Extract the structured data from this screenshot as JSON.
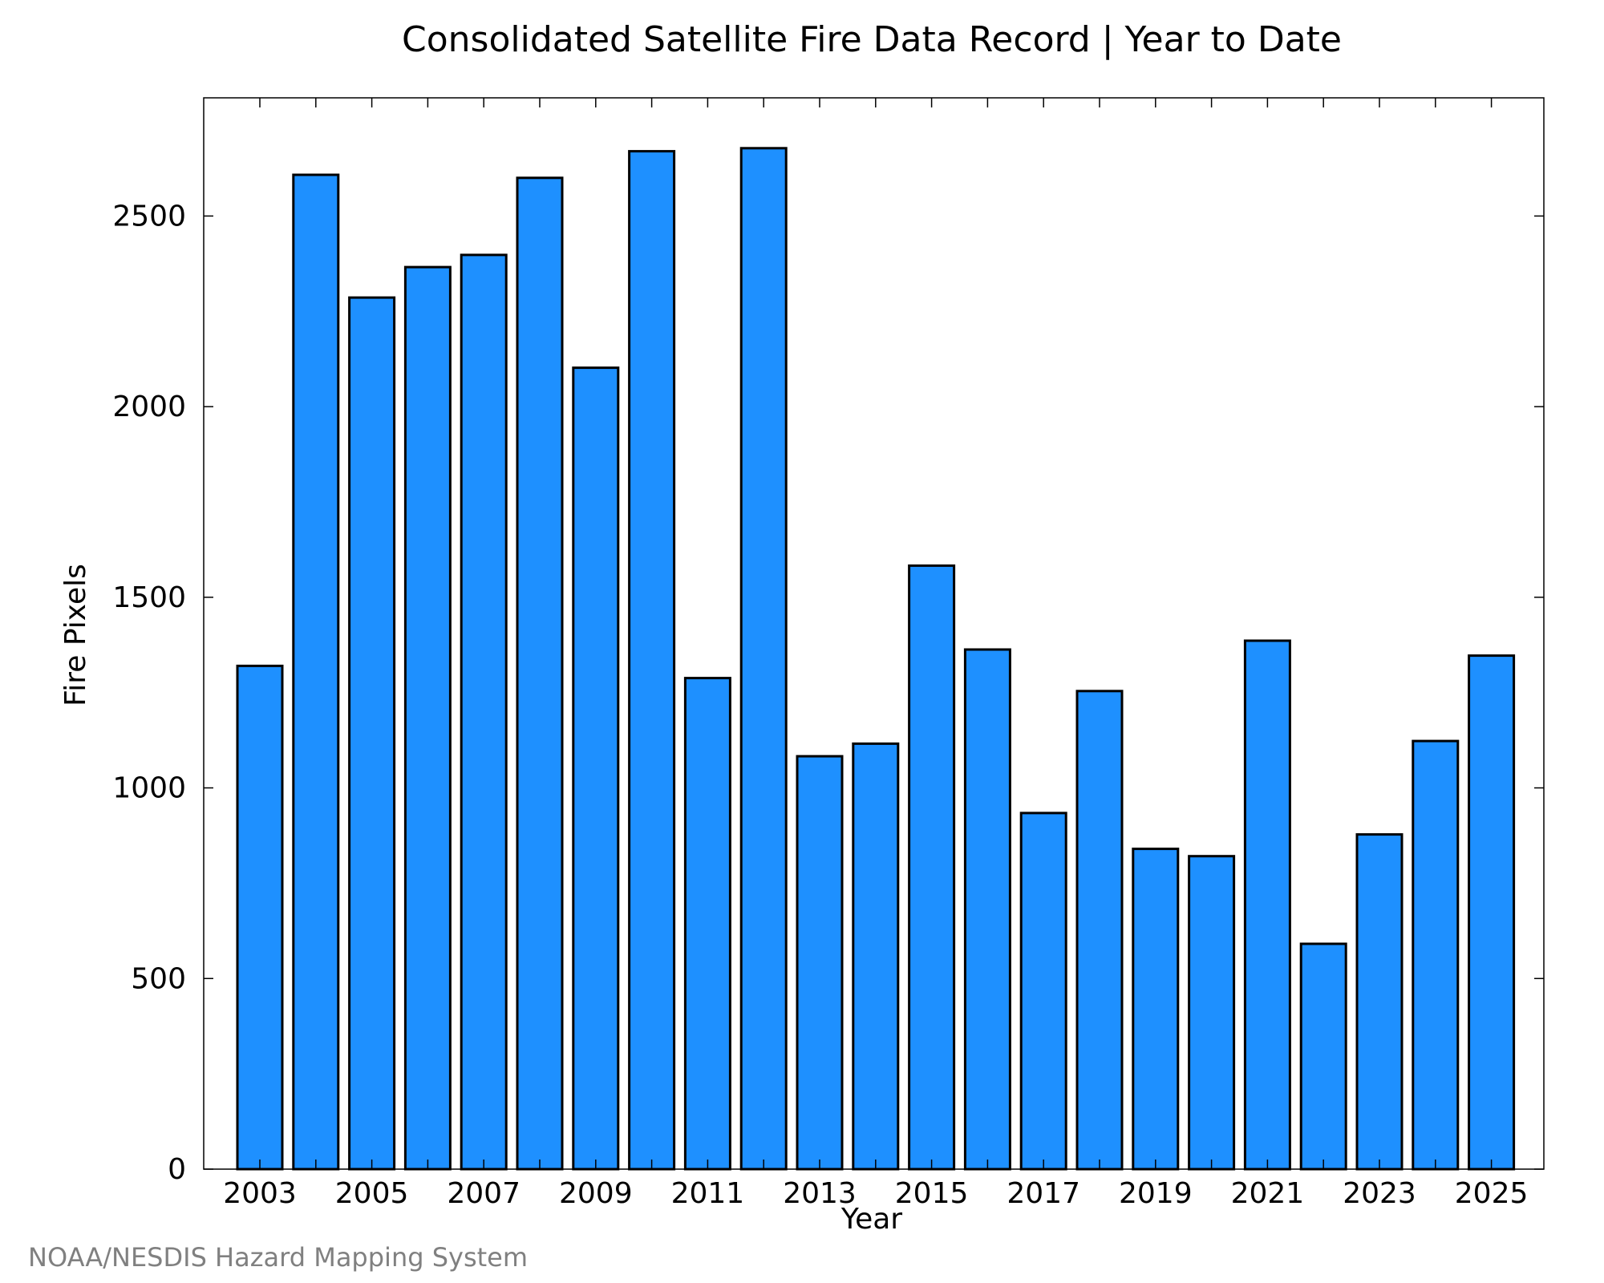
{
  "chart_data": {
    "type": "bar",
    "title": "Consolidated Satellite Fire Data Record | Year to Date",
    "xlabel": "Year",
    "ylabel": "Fire Pixels",
    "categories": [
      "2003",
      "2004",
      "2005",
      "2006",
      "2007",
      "2008",
      "2009",
      "2010",
      "2011",
      "2012",
      "2013",
      "2014",
      "2015",
      "2016",
      "2017",
      "2018",
      "2019",
      "2020",
      "2021",
      "2022",
      "2023",
      "2024",
      "2025"
    ],
    "values": [
      1320,
      2608,
      2286,
      2366,
      2398,
      2600,
      2102,
      2670,
      1288,
      2678,
      1083,
      1116,
      1583,
      1363,
      934,
      1254,
      840,
      821,
      1386,
      591,
      878,
      1123,
      1347
    ],
    "x_tick_labels": [
      "2003",
      "2005",
      "2007",
      "2009",
      "2011",
      "2013",
      "2015",
      "2017",
      "2019",
      "2021",
      "2023",
      "2025"
    ],
    "y_ticks": [
      0,
      500,
      1000,
      1500,
      2000,
      2500
    ],
    "ylim": [
      0,
      2810
    ],
    "grid": false,
    "legend": "none",
    "bar_color": "#1e90ff",
    "edge_color": "#000000"
  },
  "footer": {
    "source": "NOAA/NESDIS Hazard Mapping System"
  }
}
